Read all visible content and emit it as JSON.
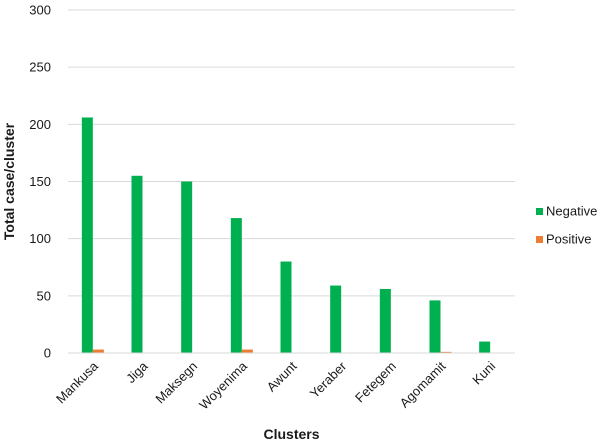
{
  "chart_data": {
    "type": "bar",
    "categories": [
      "Mankusa",
      "Jiga",
      "Maksegn",
      "Woyenima",
      "Awunt",
      "Yeraber",
      "Fetegem",
      "Agomamit",
      "Kuni"
    ],
    "series": [
      {
        "name": "Negative",
        "color": "#00b050",
        "values": [
          206,
          155,
          150,
          118,
          80,
          59,
          56,
          46,
          10
        ]
      },
      {
        "name": "Positive",
        "color": "#ed7d31",
        "values": [
          3,
          0,
          0,
          3,
          0,
          0,
          0,
          1,
          0
        ]
      }
    ],
    "xlabel": "Clusters",
    "ylabel": "Total case/cluster",
    "ylim": [
      0,
      300
    ],
    "yticks": [
      0,
      50,
      100,
      150,
      200,
      250,
      300
    ],
    "grid": true,
    "legend_position": "right"
  }
}
